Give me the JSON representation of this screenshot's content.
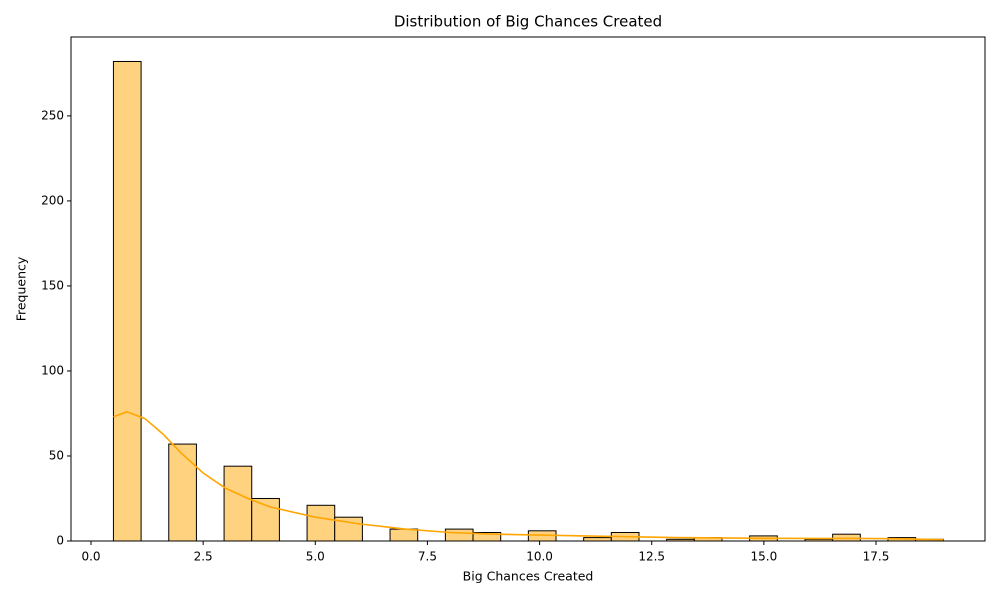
{
  "chart_data": {
    "type": "histogram",
    "title": "Distribution of Big Chances Created",
    "x_label": "Big Chances Created",
    "y_label": "Frequency",
    "bins": [
      0.5,
      1.1167,
      1.7333,
      2.35,
      2.9667,
      3.5833,
      4.2,
      4.8167,
      5.4333,
      6.05,
      6.6667,
      7.2833,
      7.9,
      8.5167,
      9.1333,
      9.75,
      10.3667,
      10.9833,
      11.6,
      12.2167,
      12.8333,
      13.45,
      14.0667,
      14.6833,
      15.3,
      15.9167,
      16.5333,
      17.15,
      17.7667,
      18.3833,
      19.0
    ],
    "counts": [
      282,
      0,
      57,
      0,
      44,
      25,
      0,
      21,
      14,
      0,
      7,
      0,
      7,
      5,
      0,
      6,
      0,
      2,
      5,
      0,
      1,
      2,
      0,
      3,
      0,
      1,
      4,
      0,
      2,
      1
    ],
    "color": "#ffd280",
    "edgecolor": "#000000",
    "kde": {
      "color": "#ffa500",
      "x": [
        0.5,
        0.8,
        1.2,
        1.6,
        2.0,
        2.5,
        3.0,
        3.5,
        4.0,
        4.5,
        5.0,
        5.5,
        6.0,
        7.0,
        8.0,
        9.0,
        10.0,
        11.0,
        12.0,
        13.0,
        14.0,
        15.0,
        16.0,
        17.0,
        18.0,
        19.0
      ],
      "y": [
        73,
        76,
        72,
        63,
        52,
        40,
        31,
        25,
        20,
        17,
        14,
        12,
        10,
        7,
        5,
        4,
        3.5,
        3,
        2.5,
        2,
        1.8,
        1.6,
        1.5,
        1.5,
        1.3,
        0.8
      ]
    },
    "xlim": [
      -0.446,
      19.93
    ],
    "ylim": [
      0,
      296.4
    ],
    "xticks": [
      {
        "value": 0,
        "label": "0.0"
      },
      2.5,
      {
        "value": 5,
        "label": "5.0"
      },
      7.5,
      {
        "value": 10,
        "label": "10.0"
      },
      12.5,
      {
        "value": 15,
        "label": "15.0"
      },
      17.5
    ],
    "yticks": [
      0,
      50,
      100,
      150,
      200,
      250
    ]
  }
}
